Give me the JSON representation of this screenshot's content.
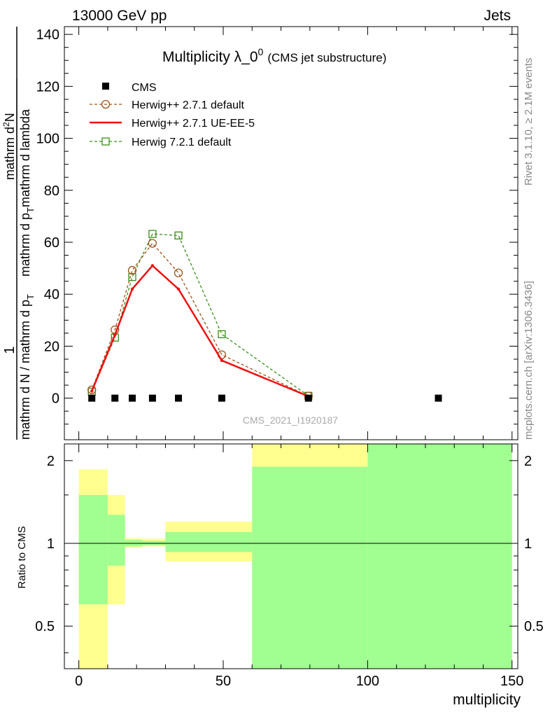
{
  "header": {
    "left": "13000 GeV pp",
    "right": "Jets"
  },
  "side": {
    "version": "Rivet 3.1.10, ≥ 2.1M events",
    "source": "mcplots.cern.ch [arXiv:1306.3436]"
  },
  "title": {
    "main": "Multiplicity λ_0",
    "superscript": "0",
    "sub": "(CMS jet substructure)"
  },
  "watermark": "CMS_2021_I1920187",
  "y_axis_label": {
    "numerator": "1",
    "denominator": "mathrm d N / mathrm d p",
    "denominator_sub": "T",
    "inner_num": "mathrm d",
    "inner_num_sup": "2",
    "inner_num_tail": "N",
    "inner_den_a": "mathrm d p",
    "inner_den_sub": "T",
    "inner_den_b": "mathrm d lambda"
  },
  "ratio_axis_label": "Ratio to CMS",
  "x_axis_label": "multiplicity",
  "colors": {
    "cms": "#000000",
    "herwig_pp_default": "#a0521a",
    "herwig_pp_ueee5": "#ee1111",
    "herwig72": "#3a8e1a",
    "band_stat": "#a0ff90",
    "band_total": "#ffff90"
  },
  "chart_data": {
    "type": "line",
    "main_panel": {
      "xlim": [
        -5,
        152
      ],
      "ylim": [
        -16,
        143
      ],
      "y_ticks": [
        0,
        20,
        40,
        60,
        80,
        100,
        120,
        140
      ],
      "y_tick_labels": [
        "0",
        "20",
        "40",
        "60",
        "80",
        "100",
        "120",
        "140"
      ],
      "series": [
        {
          "name": "CMS",
          "style": "markers",
          "x": [
            4.5,
            12.5,
            18.5,
            25.5,
            34.5,
            49.5,
            79.5,
            124.5
          ],
          "y": [
            0,
            0,
            0,
            0,
            0,
            0,
            0,
            0
          ]
        },
        {
          "name": "Herwig++ 2.7.1 default",
          "style": "dashed-circle",
          "x": [
            4.5,
            12.5,
            18.5,
            25.5,
            34.5,
            49.5,
            79.5
          ],
          "y": [
            3.2,
            26.3,
            49.2,
            59.6,
            48.2,
            16.7,
            0.8
          ]
        },
        {
          "name": "Herwig++ 2.7.1 UE-EE-5",
          "style": "solid",
          "x": [
            4.5,
            12.5,
            18.5,
            25.5,
            34.5,
            49.5,
            79.5
          ],
          "y": [
            2.7,
            24.3,
            42.0,
            51.0,
            42.0,
            14.5,
            0.7
          ]
        },
        {
          "name": "Herwig 7.2.1 default",
          "style": "dashed-square",
          "x": [
            4.5,
            12.5,
            18.5,
            25.5,
            34.5,
            49.5,
            79.5
          ],
          "y": [
            2.5,
            23.3,
            46.6,
            63.2,
            62.6,
            24.6,
            0.9
          ]
        }
      ]
    },
    "ratio_panel": {
      "ylim": [
        0.35,
        2.3
      ],
      "scale": "log",
      "y_ticks": [
        0.5,
        1,
        2
      ],
      "y_tick_labels": [
        "0.5",
        "1",
        "2"
      ],
      "x_ticks": [
        0,
        50,
        100,
        150
      ],
      "x_tick_labels": [
        "0",
        "50",
        "100",
        "150"
      ],
      "bins": [
        {
          "x0": 0,
          "x1": 10,
          "total_lo": 0.3,
          "total_hi": 1.86,
          "stat_lo": 0.6,
          "stat_hi": 1.5
        },
        {
          "x0": 10,
          "x1": 16,
          "total_lo": 0.6,
          "total_hi": 1.5,
          "stat_lo": 0.83,
          "stat_hi": 1.27
        },
        {
          "x0": 16,
          "x1": 22,
          "total_lo": 0.965,
          "total_hi": 1.045,
          "stat_lo": 0.975,
          "stat_hi": 1.03
        },
        {
          "x0": 22,
          "x1": 30,
          "total_lo": 0.975,
          "total_hi": 1.04,
          "stat_lo": 0.985,
          "stat_hi": 1.02
        },
        {
          "x0": 30,
          "x1": 60,
          "total_lo": 0.86,
          "total_hi": 1.2,
          "stat_lo": 0.93,
          "stat_hi": 1.1
        },
        {
          "x0": 60,
          "x1": 100,
          "total_lo": 0.3,
          "total_hi": 3.0,
          "stat_lo": 0.3,
          "stat_hi": 1.9
        },
        {
          "x0": 100,
          "x1": 150,
          "total_lo": 0.3,
          "total_hi": 3.0,
          "stat_lo": 0.3,
          "stat_hi": 3.0
        }
      ]
    },
    "legend_position": "top-left"
  }
}
